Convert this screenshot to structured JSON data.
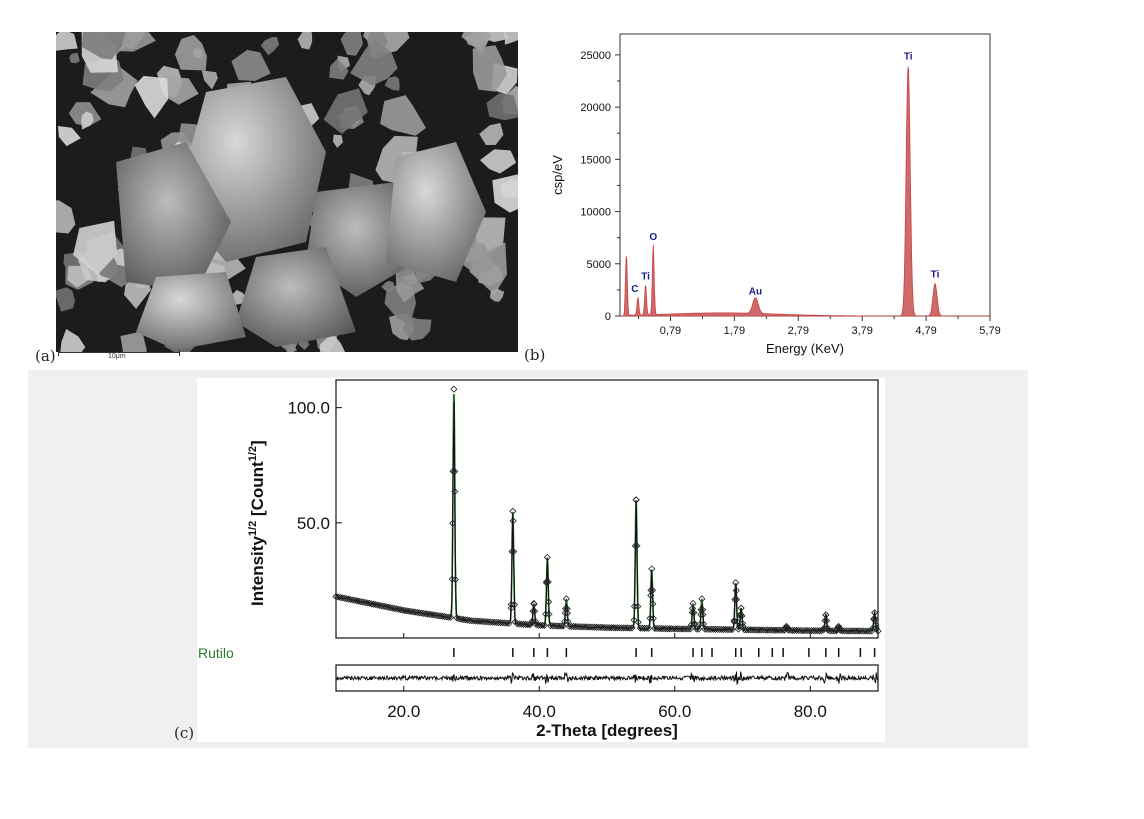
{
  "panels": {
    "a": "(a)",
    "b": "(b)",
    "c": "(c)"
  },
  "sem": {
    "scale_bar_label": "10μm"
  },
  "chart_data": [
    {
      "type": "bar",
      "panel": "b",
      "xlabel": "Energy (KeV)",
      "ylabel": "csp/eV",
      "xlim": [
        0,
        5.79
      ],
      "ylim": [
        0,
        27000
      ],
      "xticks": [
        "0,79",
        "1,79",
        "2,79",
        "3,79",
        "4,79",
        "5,79"
      ],
      "yticks": [
        0,
        5000,
        10000,
        15000,
        20000,
        25000
      ],
      "color": "#c84040",
      "peaks": [
        {
          "x": 0.1,
          "y": 5900,
          "label": ""
        },
        {
          "x": 0.28,
          "y": 1700,
          "label": "C"
        },
        {
          "x": 0.4,
          "y": 2900,
          "label": "Ti"
        },
        {
          "x": 0.52,
          "y": 6700,
          "label": "O"
        },
        {
          "x": 2.12,
          "y": 1500,
          "label": "Au"
        },
        {
          "x": 4.51,
          "y": 24000,
          "label": "Ti"
        },
        {
          "x": 4.93,
          "y": 3100,
          "label": "Ti"
        }
      ]
    },
    {
      "type": "line",
      "panel": "c",
      "xlabel": "2-Theta [degrees]",
      "ylabel": "Intensity",
      "ylabel_sup": "1/2",
      "ylabel_unit": " [Count",
      "ylabel_unit_sup": "1/2",
      "ylabel_end": "]",
      "xlim": [
        10,
        90
      ],
      "ylim": [
        0,
        112
      ],
      "xticks": [
        "20.0",
        "40.0",
        "60.0",
        "80.0"
      ],
      "yticks": [
        "50.0",
        "100.0"
      ],
      "phase": "Rutilo",
      "line_color": "#1e6e1e",
      "background": [
        [
          10,
          18
        ],
        [
          20,
          12
        ],
        [
          30,
          7.5
        ],
        [
          40,
          5.5
        ],
        [
          50,
          4.5
        ],
        [
          60,
          4
        ],
        [
          70,
          3.6
        ],
        [
          80,
          3.2
        ],
        [
          90,
          3
        ]
      ],
      "peaks": [
        {
          "x": 27.4,
          "y": 108
        },
        {
          "x": 36.1,
          "y": 55
        },
        {
          "x": 39.2,
          "y": 15
        },
        {
          "x": 41.2,
          "y": 35
        },
        {
          "x": 44.0,
          "y": 17
        },
        {
          "x": 54.3,
          "y": 60
        },
        {
          "x": 56.6,
          "y": 30
        },
        {
          "x": 62.7,
          "y": 15
        },
        {
          "x": 64.0,
          "y": 17
        },
        {
          "x": 69.0,
          "y": 24
        },
        {
          "x": 69.8,
          "y": 13
        },
        {
          "x": 76.5,
          "y": 5
        },
        {
          "x": 82.3,
          "y": 10
        },
        {
          "x": 84.2,
          "y": 5
        },
        {
          "x": 89.5,
          "y": 11
        }
      ],
      "reflections": [
        27.4,
        36.1,
        39.2,
        41.2,
        44.0,
        54.3,
        56.6,
        62.7,
        64.0,
        65.5,
        69.0,
        69.8,
        72.4,
        74.4,
        76.0,
        79.8,
        82.3,
        84.2,
        87.4,
        89.5
      ]
    }
  ]
}
